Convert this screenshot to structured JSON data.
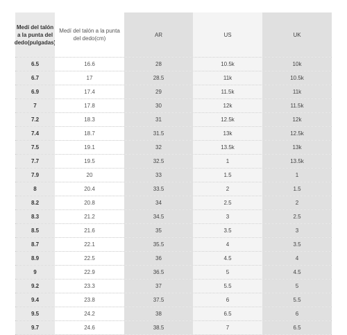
{
  "headers": [
    "Medí del talón a la punta del dedo(pulgadas)",
    "Medí del talón a la punta del dedo(cm)",
    "AR",
    "US",
    "UK"
  ],
  "rows": [
    [
      "6.5",
      "16.6",
      "28",
      "10.5k",
      "10k"
    ],
    [
      "6.7",
      "17",
      "28.5",
      "11k",
      "10.5k"
    ],
    [
      "6.9",
      "17.4",
      "29",
      "11.5k",
      "11k"
    ],
    [
      "7",
      "17.8",
      "30",
      "12k",
      "11.5k"
    ],
    [
      "7.2",
      "18.3",
      "31",
      "12.5k",
      "12k"
    ],
    [
      "7.4",
      "18.7",
      "31.5",
      "13k",
      "12.5k"
    ],
    [
      "7.5",
      "19.1",
      "32",
      "13.5k",
      "13k"
    ],
    [
      "7.7",
      "19.5",
      "32.5",
      "1",
      "13.5k"
    ],
    [
      "7.9",
      "20",
      "33",
      "1.5",
      "1"
    ],
    [
      "8",
      "20.4",
      "33.5",
      "2",
      "1.5"
    ],
    [
      "8.2",
      "20.8",
      "34",
      "2.5",
      "2"
    ],
    [
      "8.3",
      "21.2",
      "34.5",
      "3",
      "2.5"
    ],
    [
      "8.5",
      "21.6",
      "35",
      "3.5",
      "3"
    ],
    [
      "8.7",
      "22.1",
      "35.5",
      "4",
      "3.5"
    ],
    [
      "8.9",
      "22.5",
      "36",
      "4.5",
      "4"
    ],
    [
      "9",
      "22.9",
      "36.5",
      "5",
      "4.5"
    ],
    [
      "9.2",
      "23.3",
      "37",
      "5.5",
      "5"
    ],
    [
      "9.4",
      "23.8",
      "37.5",
      "6",
      "5.5"
    ],
    [
      "9.5",
      "24.2",
      "38",
      "6.5",
      "6"
    ],
    [
      "9.7",
      "24.6",
      "38.5",
      "7",
      "6.5"
    ]
  ]
}
